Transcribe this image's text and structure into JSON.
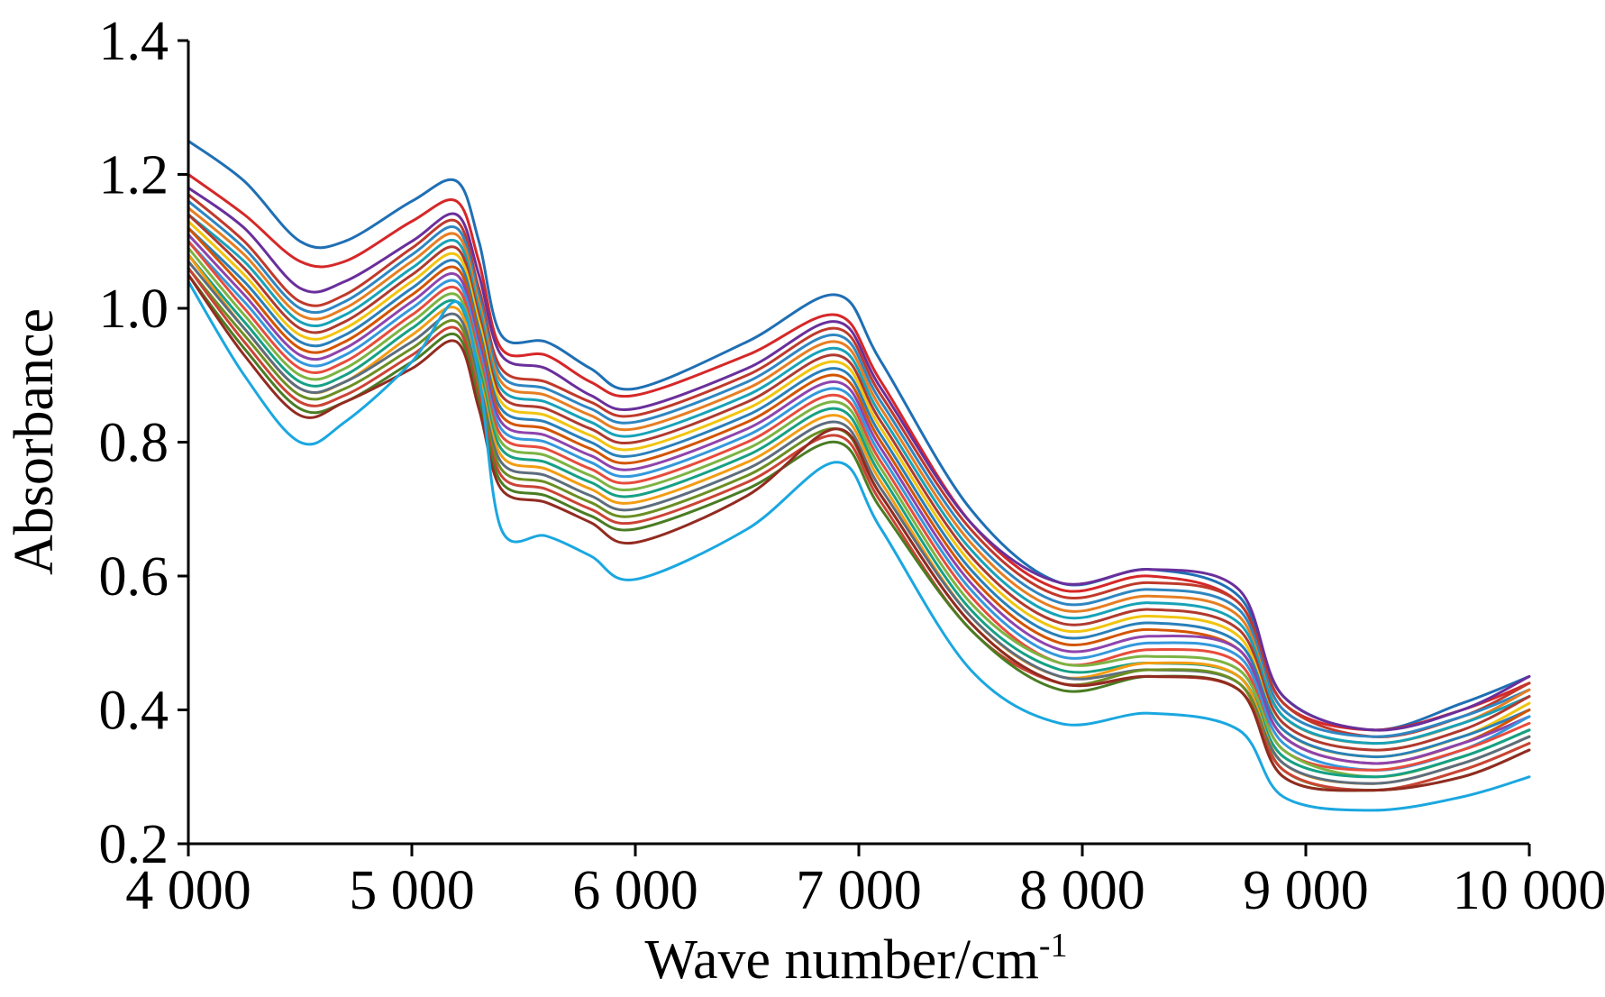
{
  "chart_data": {
    "type": "line",
    "title": "",
    "xlabel": "Wave number/cm",
    "xlabel_sup": "-1",
    "ylabel": "Absorbance",
    "xlim": [
      4000,
      10000
    ],
    "ylim": [
      0.2,
      1.4
    ],
    "x_ticks": [
      4000,
      5000,
      6000,
      7000,
      8000,
      9000,
      10000
    ],
    "x_tick_labels": [
      "4 000",
      "5 000",
      "6 000",
      "7 000",
      "8 000",
      "9 000",
      "10 000"
    ],
    "y_ticks": [
      0.2,
      0.4,
      0.6,
      0.8,
      1.0,
      1.2,
      1.4
    ],
    "y_tick_labels": [
      "0.2",
      "0.4",
      "0.6",
      "0.8",
      "1.0",
      "1.2",
      "1.4"
    ],
    "grid": false,
    "legend": "none",
    "x": [
      4000,
      4250,
      4500,
      4700,
      5000,
      5200,
      5300,
      5400,
      5600,
      5800,
      6000,
      6500,
      6900,
      7100,
      7500,
      7900,
      8300,
      8700,
      8900,
      9300,
      9700,
      10000
    ],
    "series": [
      {
        "color": "#1f6fb4",
        "values": [
          1.25,
          1.19,
          1.1,
          1.1,
          1.16,
          1.19,
          1.1,
          0.96,
          0.95,
          0.91,
          0.88,
          0.95,
          1.02,
          0.92,
          0.7,
          0.59,
          0.61,
          0.57,
          0.42,
          0.37,
          0.41,
          0.45
        ]
      },
      {
        "color": "#d62728",
        "values": [
          1.2,
          1.14,
          1.07,
          1.07,
          1.13,
          1.16,
          1.07,
          0.94,
          0.93,
          0.89,
          0.87,
          0.93,
          0.99,
          0.89,
          0.68,
          0.58,
          0.6,
          0.56,
          0.41,
          0.37,
          0.4,
          0.44
        ]
      },
      {
        "color": "#6a2f9b",
        "values": [
          1.18,
          1.12,
          1.03,
          1.04,
          1.1,
          1.14,
          1.05,
          0.93,
          0.91,
          0.87,
          0.85,
          0.91,
          0.98,
          0.88,
          0.68,
          0.59,
          0.61,
          0.58,
          0.42,
          0.37,
          0.4,
          0.45
        ]
      },
      {
        "color": "#c0392b",
        "values": [
          1.17,
          1.1,
          1.01,
          1.02,
          1.09,
          1.13,
          1.03,
          0.91,
          0.89,
          0.86,
          0.84,
          0.9,
          0.97,
          0.87,
          0.67,
          0.57,
          0.59,
          0.56,
          0.41,
          0.36,
          0.39,
          0.44
        ]
      },
      {
        "color": "#2e86c1",
        "values": [
          1.16,
          1.09,
          1.0,
          1.01,
          1.08,
          1.12,
          1.02,
          0.9,
          0.88,
          0.85,
          0.83,
          0.89,
          0.96,
          0.86,
          0.66,
          0.56,
          0.58,
          0.55,
          0.4,
          0.36,
          0.39,
          0.43
        ]
      },
      {
        "color": "#e67e22",
        "values": [
          1.15,
          1.08,
          0.99,
          1.0,
          1.07,
          1.11,
          1.01,
          0.89,
          0.87,
          0.84,
          0.82,
          0.88,
          0.95,
          0.85,
          0.65,
          0.55,
          0.57,
          0.54,
          0.39,
          0.35,
          0.38,
          0.43
        ]
      },
      {
        "color": "#17a2b8",
        "values": [
          1.14,
          1.07,
          0.98,
          0.99,
          1.06,
          1.1,
          1.0,
          0.88,
          0.86,
          0.83,
          0.81,
          0.87,
          0.94,
          0.84,
          0.64,
          0.54,
          0.56,
          0.53,
          0.39,
          0.35,
          0.38,
          0.42
        ]
      },
      {
        "color": "#b03a2e",
        "values": [
          1.14,
          1.06,
          0.97,
          0.98,
          1.05,
          1.09,
          0.99,
          0.87,
          0.85,
          0.82,
          0.8,
          0.86,
          0.93,
          0.83,
          0.63,
          0.53,
          0.55,
          0.52,
          0.38,
          0.34,
          0.37,
          0.42
        ]
      },
      {
        "color": "#f1c40f",
        "values": [
          1.13,
          1.05,
          0.96,
          0.97,
          1.04,
          1.08,
          0.98,
          0.86,
          0.84,
          0.81,
          0.79,
          0.85,
          0.92,
          0.82,
          0.62,
          0.52,
          0.54,
          0.51,
          0.37,
          0.33,
          0.36,
          0.41
        ]
      },
      {
        "color": "#2980b9",
        "values": [
          1.12,
          1.04,
          0.95,
          0.96,
          1.03,
          1.07,
          0.97,
          0.85,
          0.83,
          0.8,
          0.78,
          0.84,
          0.91,
          0.81,
          0.61,
          0.51,
          0.53,
          0.5,
          0.37,
          0.33,
          0.36,
          0.4
        ]
      },
      {
        "color": "#d35400",
        "values": [
          1.12,
          1.03,
          0.94,
          0.95,
          1.02,
          1.06,
          0.96,
          0.84,
          0.82,
          0.79,
          0.77,
          0.83,
          0.9,
          0.8,
          0.6,
          0.5,
          0.52,
          0.49,
          0.36,
          0.32,
          0.35,
          0.4
        ]
      },
      {
        "color": "#8e44ad",
        "values": [
          1.11,
          1.02,
          0.93,
          0.94,
          1.01,
          1.05,
          0.95,
          0.83,
          0.81,
          0.78,
          0.76,
          0.82,
          0.89,
          0.79,
          0.59,
          0.49,
          0.51,
          0.49,
          0.36,
          0.32,
          0.35,
          0.39
        ]
      },
      {
        "color": "#3498db",
        "values": [
          1.1,
          1.01,
          0.92,
          0.93,
          1.0,
          1.04,
          0.94,
          0.82,
          0.8,
          0.77,
          0.75,
          0.81,
          0.88,
          0.78,
          0.58,
          0.48,
          0.5,
          0.48,
          0.35,
          0.31,
          0.34,
          0.39
        ]
      },
      {
        "color": "#e74c3c",
        "values": [
          1.1,
          1.0,
          0.91,
          0.92,
          0.99,
          1.03,
          0.93,
          0.81,
          0.79,
          0.76,
          0.74,
          0.8,
          0.87,
          0.77,
          0.57,
          0.47,
          0.49,
          0.47,
          0.34,
          0.31,
          0.34,
          0.38
        ]
      },
      {
        "color": "#7cb342",
        "values": [
          1.09,
          0.99,
          0.9,
          0.91,
          0.98,
          1.02,
          0.92,
          0.8,
          0.78,
          0.75,
          0.73,
          0.79,
          0.86,
          0.76,
          0.56,
          0.47,
          0.48,
          0.46,
          0.34,
          0.3,
          0.33,
          0.37
        ]
      },
      {
        "color": "#16a085",
        "values": [
          1.08,
          0.98,
          0.89,
          0.9,
          0.97,
          1.01,
          0.91,
          0.79,
          0.77,
          0.74,
          0.72,
          0.78,
          0.85,
          0.75,
          0.55,
          0.46,
          0.47,
          0.45,
          0.33,
          0.3,
          0.33,
          0.37
        ]
      },
      {
        "color": "#f39c12",
        "values": [
          1.08,
          0.97,
          0.88,
          0.89,
          0.96,
          1.0,
          0.9,
          0.78,
          0.76,
          0.73,
          0.71,
          0.77,
          0.84,
          0.74,
          0.54,
          0.45,
          0.47,
          0.45,
          0.32,
          0.29,
          0.32,
          0.36
        ]
      },
      {
        "color": "#5d6d7e",
        "values": [
          1.07,
          0.97,
          0.88,
          0.89,
          0.95,
          0.99,
          0.89,
          0.77,
          0.75,
          0.72,
          0.7,
          0.76,
          0.83,
          0.73,
          0.54,
          0.45,
          0.46,
          0.44,
          0.32,
          0.29,
          0.32,
          0.36
        ]
      },
      {
        "color": "#6b8e23",
        "values": [
          1.06,
          0.96,
          0.87,
          0.88,
          0.94,
          0.98,
          0.88,
          0.76,
          0.74,
          0.71,
          0.69,
          0.75,
          0.82,
          0.72,
          0.53,
          0.44,
          0.46,
          0.44,
          0.31,
          0.28,
          0.31,
          0.35
        ]
      },
      {
        "color": "#cb4335",
        "values": [
          1.06,
          0.95,
          0.86,
          0.87,
          0.93,
          0.97,
          0.87,
          0.75,
          0.73,
          0.7,
          0.68,
          0.74,
          0.81,
          0.71,
          0.52,
          0.44,
          0.45,
          0.43,
          0.31,
          0.28,
          0.31,
          0.35
        ]
      },
      {
        "color": "#4a7c23",
        "values": [
          1.05,
          0.94,
          0.85,
          0.86,
          0.92,
          0.96,
          0.86,
          0.74,
          0.72,
          0.69,
          0.67,
          0.73,
          0.8,
          0.7,
          0.52,
          0.43,
          0.45,
          0.43,
          0.3,
          0.28,
          0.3,
          0.34
        ]
      },
      {
        "color": "#922b21",
        "values": [
          1.05,
          0.93,
          0.84,
          0.86,
          0.91,
          0.95,
          0.85,
          0.73,
          0.71,
          0.68,
          0.65,
          0.72,
          0.82,
          0.72,
          0.53,
          0.44,
          0.45,
          0.43,
          0.3,
          0.28,
          0.3,
          0.34
        ]
      },
      {
        "color": "#1aa7e0",
        "values": [
          1.04,
          0.9,
          0.8,
          0.83,
          0.92,
          1.01,
          0.9,
          0.67,
          0.66,
          0.63,
          0.595,
          0.67,
          0.77,
          0.67,
          0.46,
          0.38,
          0.395,
          0.37,
          0.27,
          0.25,
          0.27,
          0.3
        ]
      }
    ]
  }
}
